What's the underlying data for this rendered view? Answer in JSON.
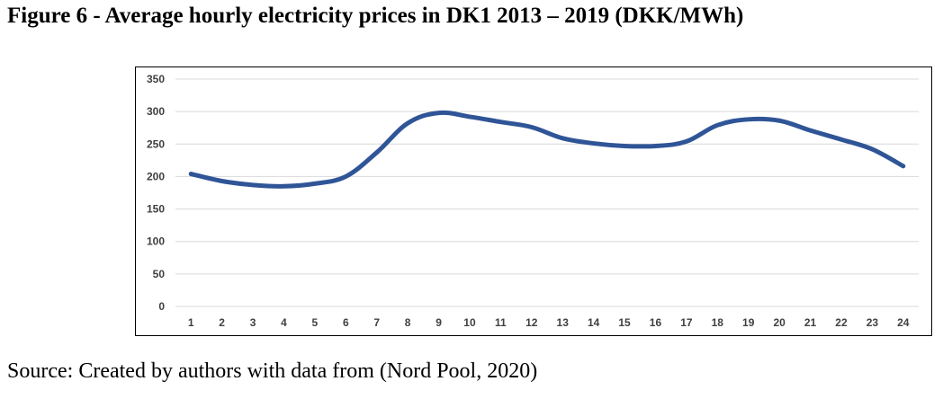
{
  "figure": {
    "title": "Figure 6 - Average hourly electricity prices in DK1 2013 – 2019 (DKK/MWh)",
    "source": "Source: Created by authors with data from (Nord Pool, 2020)"
  },
  "chart_data": {
    "type": "line",
    "title": "",
    "xlabel": "",
    "ylabel": "",
    "x": [
      "1",
      "2",
      "3",
      "4",
      "5",
      "6",
      "7",
      "8",
      "9",
      "10",
      "11",
      "12",
      "13",
      "14",
      "15",
      "16",
      "17",
      "18",
      "19",
      "20",
      "21",
      "22",
      "23",
      "24"
    ],
    "series": [
      {
        "values": [
          204,
          193,
          187,
          185,
          189,
          200,
          237,
          282,
          298,
          292,
          284,
          276,
          259,
          251,
          247,
          247,
          254,
          279,
          288,
          286,
          271,
          257,
          242,
          216
        ],
        "color": "#2f5597"
      }
    ],
    "yticks": [
      0,
      50,
      100,
      150,
      200,
      250,
      300,
      350
    ],
    "ylim": [
      0,
      350
    ],
    "grid": true,
    "legend": "none"
  }
}
